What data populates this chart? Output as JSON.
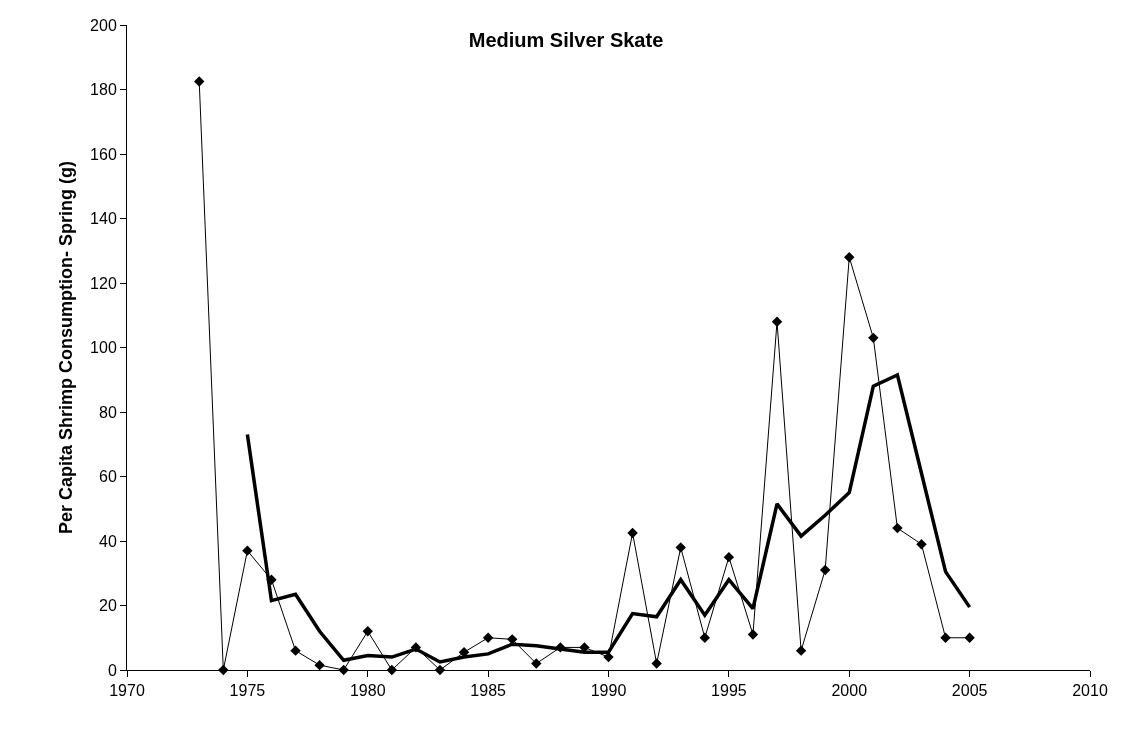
{
  "chart_data": {
    "type": "line",
    "title": "Medium Silver Skate",
    "ylabel": "Per Capita Shrimp Consumption- Spring (g)",
    "xlim": [
      1970,
      2010
    ],
    "xticks": [
      1970,
      1975,
      1980,
      1985,
      1990,
      1995,
      2000,
      2005,
      2010
    ],
    "ylim": [
      0,
      200
    ],
    "yticks": [
      0,
      20,
      40,
      60,
      80,
      100,
      120,
      140,
      160,
      180,
      200
    ],
    "series": [
      {
        "color": "#000000",
        "marker": "diamond",
        "x": [
          1973,
          1974,
          1975,
          1976,
          1977,
          1978,
          1979,
          1980,
          1981,
          1982,
          1983,
          1984,
          1985,
          1986,
          1987,
          1988,
          1989,
          1990,
          1991,
          1992,
          1993,
          1994,
          1995,
          1996,
          1997,
          1998,
          1999,
          2000,
          2001,
          2002,
          2003,
          2004,
          2005
        ],
        "values": [
          182.5,
          0,
          37,
          28,
          6,
          1.5,
          0,
          12,
          0,
          7,
          0,
          5.5,
          10,
          9.5,
          2,
          7,
          7,
          4,
          42.5,
          2,
          38,
          10,
          35,
          11,
          108,
          6,
          31,
          128,
          103,
          44,
          39,
          10,
          10
        ]
      },
      {
        "color": "#000000",
        "marker": "none",
        "x": [
          1975,
          1976,
          1977,
          1978,
          1979,
          1980,
          1981,
          1982,
          1983,
          1984,
          1985,
          1986,
          1987,
          1988,
          1989,
          1990,
          1991,
          1992,
          1993,
          1994,
          1995,
          1996,
          1997,
          1998,
          1999,
          2000,
          2001,
          2002,
          2003,
          2004,
          2005
        ],
        "values": [
          73,
          21.5,
          23.5,
          12,
          3,
          4.5,
          4,
          6.5,
          2.5,
          4,
          5,
          8,
          7.5,
          6.5,
          5.5,
          5.5,
          17.5,
          16.5,
          28,
          17,
          28,
          19,
          51.5,
          41.5,
          48,
          55,
          88,
          91.5,
          61,
          30.5,
          19.5
        ]
      }
    ]
  }
}
